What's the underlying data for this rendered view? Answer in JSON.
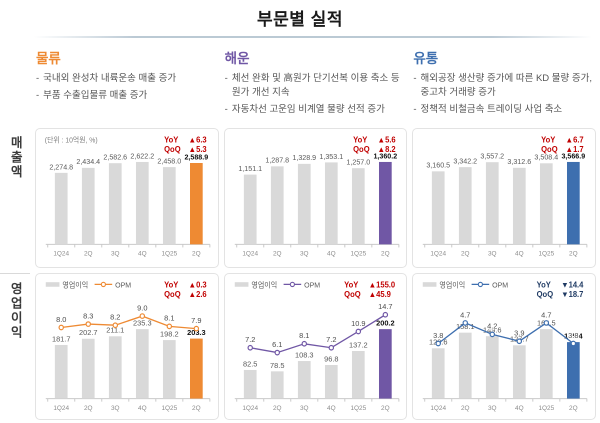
{
  "title": "부문별 실적",
  "row_labels": [
    "매출액",
    "영업이익"
  ],
  "unit_note": "(단위 : 10억원, %)",
  "legend": {
    "bar_label": "영업이익",
    "line_label": "OPM"
  },
  "metrics": {
    "yoy_label": "YoY",
    "qoq_label": "QoQ"
  },
  "colors": {
    "up": "#c00000",
    "down": "#1f3a63",
    "bar_gray": "#d9d9d9",
    "axis": "#c9c9c9",
    "label_gray": "#595959",
    "tick_gray": "#8c8c8c",
    "logistics": "#ee8a33",
    "shipping": "#7057a5",
    "distribution": "#3e6faf"
  },
  "sections": [
    {
      "title": "물류",
      "color": "#ee8a33",
      "bullets": [
        "국내외 완성차 내륙운송 매출 증가",
        "부품 수출입물류 매출 증가"
      ]
    },
    {
      "title": "해운",
      "color": "#7057a5",
      "bullets": [
        "체선 완화 및 高원가 단기선복 이용 축소 등 원가 개선 지속",
        "자동차선 고운임 비계열 물량 선적 증가"
      ]
    },
    {
      "title": "유통",
      "color": "#3e6faf",
      "bullets": [
        "해외공장 생산량 증가에 따른 KD 물량 증가, 중고차 거래량 증가",
        "정책적 비철금속 트레이딩 사업 축소"
      ]
    }
  ],
  "chart_data": [
    {
      "id": "logistics-revenue",
      "type": "bar",
      "section": "물류",
      "row": "매출액",
      "unit_note": "(단위 : 10억원, %)",
      "categories": [
        "1Q24",
        "2Q",
        "3Q",
        "4Q",
        "1Q25",
        "2Q"
      ],
      "values": [
        2274.8,
        2434.4,
        2582.6,
        2622.2,
        2458.0,
        2588.9
      ],
      "highlight_index": 5,
      "accent": "#ee8a33",
      "yoy": {
        "dir": "up",
        "value": 6.3
      },
      "qoq": {
        "dir": "up",
        "value": 5.3
      }
    },
    {
      "id": "shipping-revenue",
      "type": "bar",
      "section": "해운",
      "row": "매출액",
      "categories": [
        "1Q24",
        "2Q",
        "3Q",
        "4Q",
        "1Q25",
        "2Q"
      ],
      "values": [
        1151.1,
        1287.8,
        1328.9,
        1353.1,
        1257.0,
        1360.2
      ],
      "highlight_index": 5,
      "accent": "#7057a5",
      "yoy": {
        "dir": "up",
        "value": 5.6
      },
      "qoq": {
        "dir": "up",
        "value": 8.2
      }
    },
    {
      "id": "distribution-revenue",
      "type": "bar",
      "section": "유통",
      "row": "매출액",
      "categories": [
        "1Q24",
        "2Q",
        "3Q",
        "4Q",
        "1Q25",
        "2Q"
      ],
      "values": [
        3160.5,
        3342.2,
        3557.2,
        3312.6,
        3508.4,
        3566.9
      ],
      "highlight_index": 5,
      "accent": "#3e6faf",
      "yoy": {
        "dir": "up",
        "value": 6.7
      },
      "qoq": {
        "dir": "up",
        "value": 1.7
      }
    },
    {
      "id": "logistics-operating-profit",
      "type": "bar+line",
      "section": "물류",
      "row": "영업이익",
      "categories": [
        "1Q24",
        "2Q",
        "3Q",
        "4Q",
        "1Q25",
        "2Q"
      ],
      "values": [
        181.7,
        202.7,
        211.1,
        235.3,
        198.2,
        203.3
      ],
      "line": {
        "name": "OPM",
        "values": [
          8.0,
          8.3,
          8.2,
          9.0,
          8.1,
          7.9
        ],
        "ylim": [
          5,
          10
        ]
      },
      "highlight_index": 5,
      "accent": "#ee8a33",
      "yoy": {
        "dir": "up",
        "value": 0.3
      },
      "qoq": {
        "dir": "up",
        "value": 2.6
      }
    },
    {
      "id": "shipping-operating-profit",
      "type": "bar+line",
      "section": "해운",
      "row": "영업이익",
      "categories": [
        "1Q24",
        "2Q",
        "3Q",
        "4Q",
        "1Q25",
        "2Q"
      ],
      "values": [
        82.5,
        78.5,
        108.3,
        96.8,
        137.2,
        200.2
      ],
      "line": {
        "name": "OPM",
        "values": [
          7.2,
          6.1,
          8.1,
          7.2,
          10.9,
          14.7
        ],
        "ylim": [
          4,
          17
        ]
      },
      "highlight_index": 5,
      "accent": "#7057a5",
      "yoy": {
        "dir": "up",
        "value": 155.0
      },
      "qoq": {
        "dir": "up",
        "value": 45.9
      }
    },
    {
      "id": "distribution-operating-profit",
      "type": "bar+line",
      "section": "유통",
      "row": "영업이익",
      "categories": [
        "1Q24",
        "2Q",
        "3Q",
        "4Q",
        "1Q25",
        "2Q"
      ],
      "values": [
        120.6,
        158.1,
        149.6,
        127.7,
        166.5,
        135.4
      ],
      "line": {
        "name": "OPM",
        "values": [
          3.8,
          4.7,
          4.2,
          3.9,
          4.7,
          3.8
        ],
        "ylim": [
          3,
          5.5
        ]
      },
      "highlight_index": 5,
      "accent": "#3e6faf",
      "yoy": {
        "dir": "down",
        "value": 14.4
      },
      "qoq": {
        "dir": "down",
        "value": 18.7
      }
    }
  ]
}
